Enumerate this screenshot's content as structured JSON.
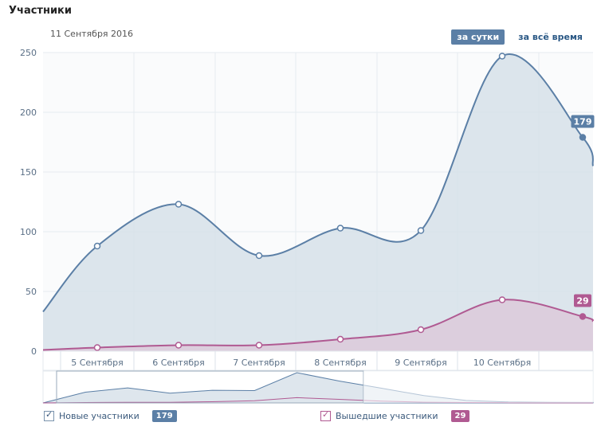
{
  "header": {
    "title": "Участники",
    "date": "11 Сентября 2016",
    "tabs": [
      {
        "label": "за сутки",
        "active": true
      },
      {
        "label": "за всё время",
        "active": false
      }
    ]
  },
  "colors": {
    "new": "#5b7fa6",
    "left": "#b05a92",
    "new_fill": "#d6e0e9",
    "left_fill": "#dcc6d8",
    "grid": "#e6ebf0",
    "axis_text": "#5a6f86"
  },
  "chart_data": {
    "type": "area",
    "x_labels": [
      "5 Сентября",
      "6 Сентября",
      "7 Сентября",
      "8 Сентября",
      "9 Сентября",
      "10 Сентября"
    ],
    "ylim": [
      0,
      250
    ],
    "yticks": [
      "0",
      "50",
      "100",
      "150",
      "200",
      "250"
    ],
    "grid": true,
    "series": [
      {
        "name": "Новые участники",
        "values": [
          88,
          123,
          80,
          103,
          101,
          247,
          179
        ],
        "last_label": "179"
      },
      {
        "name": "Вышедшие участники",
        "values": [
          3,
          5,
          5,
          10,
          18,
          43,
          29
        ],
        "last_label": "29"
      }
    ]
  },
  "legend": [
    {
      "label": "Новые участники",
      "badge": "179",
      "checked": true
    },
    {
      "label": "Вышедшие участники",
      "badge": "29",
      "checked": true
    }
  ]
}
